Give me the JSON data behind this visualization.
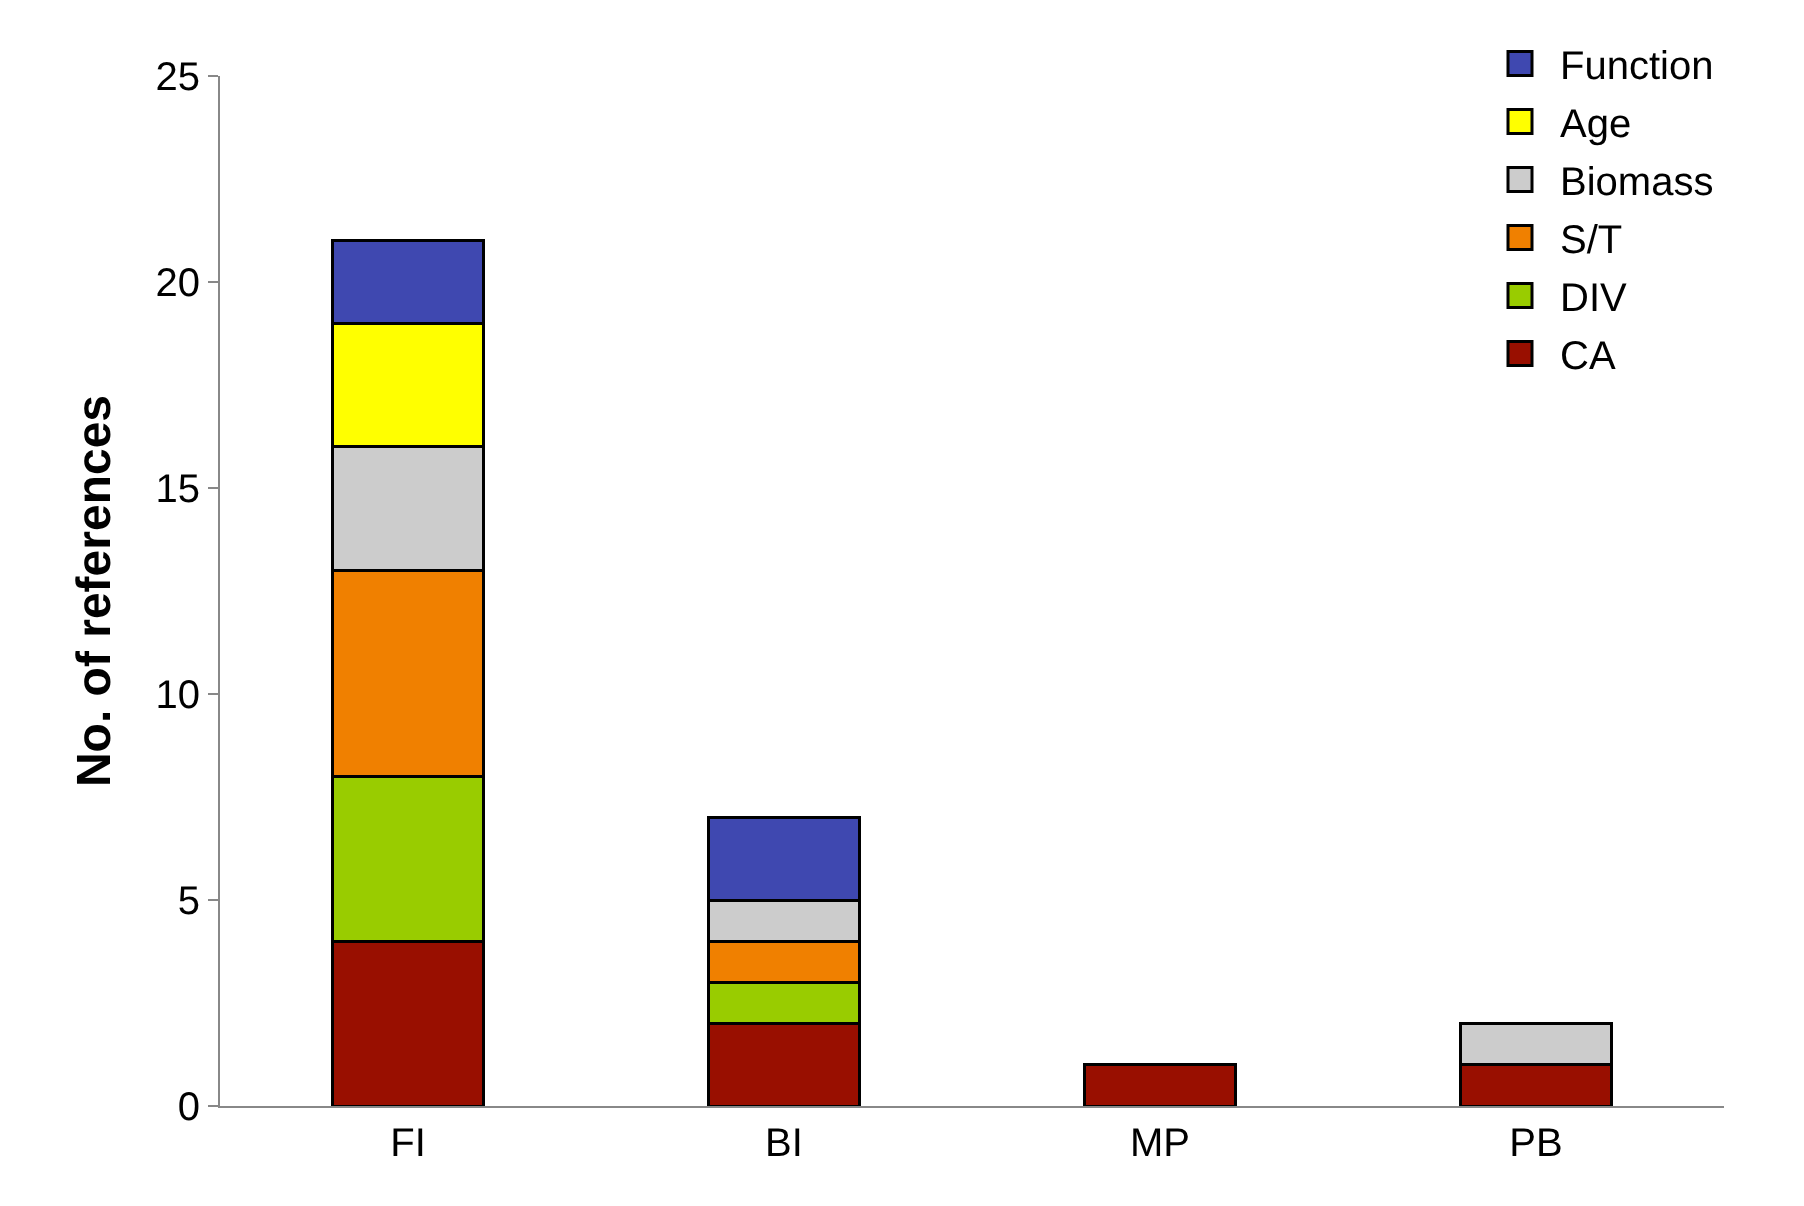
{
  "chart_data": {
    "type": "bar",
    "stacked": true,
    "ylabel": "No. of references",
    "categories": [
      "FI",
      "BI",
      "MP",
      "PB"
    ],
    "series": [
      {
        "name": "CA",
        "color": "#990f00",
        "values": [
          4,
          2,
          1,
          1
        ]
      },
      {
        "name": "DIV",
        "color": "#99cc00",
        "values": [
          4,
          1,
          null,
          null
        ]
      },
      {
        "name": "S/T",
        "color": "#f08000",
        "values": [
          5,
          1,
          null,
          null
        ]
      },
      {
        "name": "Biomass",
        "color": "#cccccc",
        "values": [
          3,
          1,
          null,
          1
        ]
      },
      {
        "name": "Age",
        "color": "#ffff00",
        "values": [
          3,
          null,
          null,
          null
        ]
      },
      {
        "name": "Function",
        "color": "#3f48b0",
        "values": [
          2,
          2,
          null,
          null
        ]
      }
    ],
    "ylim": [
      0,
      25
    ],
    "yticks": [
      0,
      5,
      10,
      15,
      20,
      25
    ],
    "legend": "top right"
  }
}
